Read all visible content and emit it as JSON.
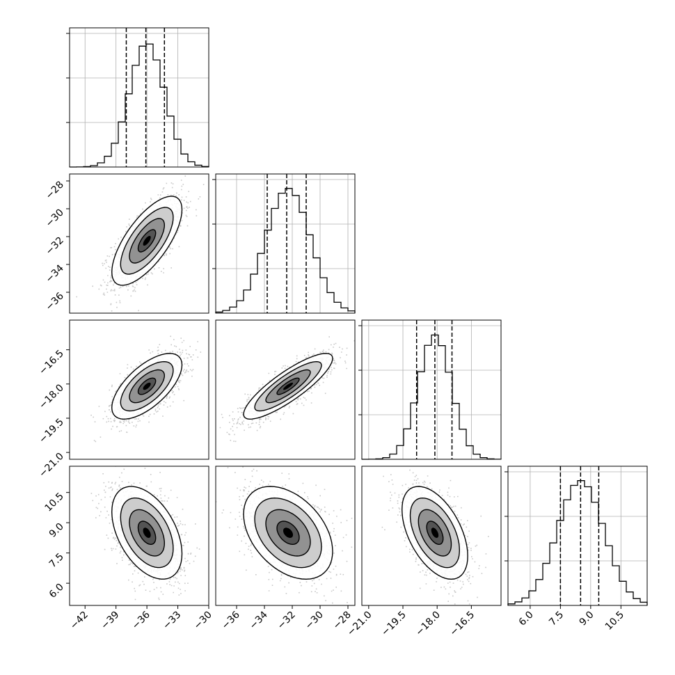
{
  "chart_data": {
    "type": "corner",
    "title": "",
    "parameters": [
      {
        "mean": -36.0,
        "sd": 1.7,
        "quantiles": [
          -38.0,
          -36.1,
          -34.3
        ],
        "range": [
          -43.5,
          -30.0
        ],
        "ticks": [
          -42,
          -39,
          -36,
          -33,
          -30
        ],
        "tick_labels": [
          "−42",
          "−39",
          "−36",
          "−33",
          "−30"
        ]
      },
      {
        "mean": -32.3,
        "sd": 1.6,
        "quantiles": [
          -33.8,
          -32.4,
          -31.0
        ],
        "range": [
          -37.5,
          -27.5
        ],
        "ticks": [
          -36,
          -34,
          -32,
          -30,
          -28
        ],
        "tick_labels": [
          "−36",
          "−34",
          "−32",
          "−30",
          "−28"
        ]
      },
      {
        "mean": -18.1,
        "sd": 0.72,
        "quantiles": [
          -18.9,
          -18.1,
          -17.35
        ],
        "range": [
          -21.3,
          -15.2
        ],
        "ticks": [
          -21.0,
          -19.5,
          -18.0,
          -16.5
        ],
        "tick_labels": [
          "−21.0",
          "−19.5",
          "−18.0",
          "−16.5"
        ]
      },
      {
        "mean": 8.5,
        "sd": 1.15,
        "quantiles": [
          7.5,
          8.5,
          9.4
        ],
        "range": [
          4.9,
          11.8
        ],
        "ticks": [
          6.0,
          7.5,
          9.0,
          10.5
        ],
        "tick_labels": [
          "6.0",
          "7.5",
          "9.0",
          "10.5"
        ]
      }
    ],
    "correlations": [
      [
        1.0,
        0.7,
        0.65,
        -0.45
      ],
      [
        0.7,
        1.0,
        0.85,
        -0.4
      ],
      [
        0.65,
        0.85,
        1.0,
        -0.5
      ],
      [
        -0.45,
        -0.4,
        -0.5,
        1.0
      ]
    ],
    "hist_bins": 20,
    "contour_levels": [
      "0.5 sigma",
      "1 sigma",
      "1.5 sigma",
      "2 sigma"
    ],
    "grid": true,
    "colors": {
      "ink": "#000000",
      "scatter": "#9a9a9a",
      "grid": "#b0b0b0",
      "background": "#ffffff"
    }
  }
}
